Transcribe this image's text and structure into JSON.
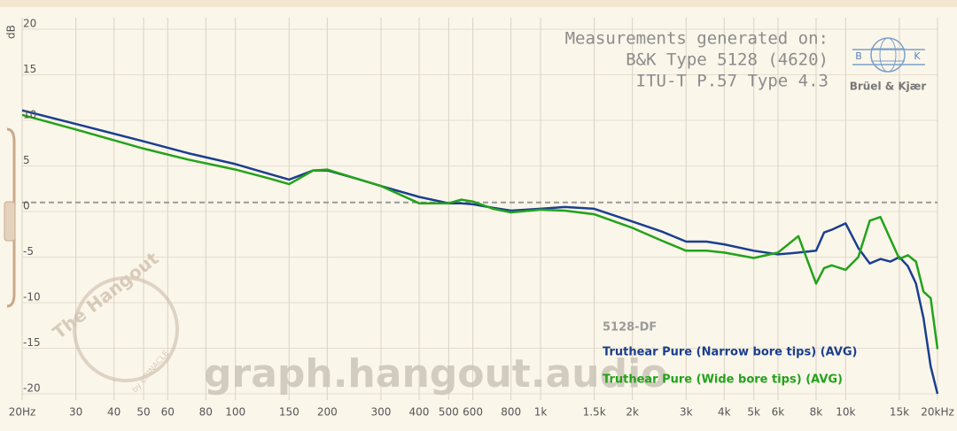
{
  "chart_data": {
    "type": "line",
    "xscale": "log",
    "ylabel": "dB",
    "annotations": [
      "Measurements generated on:",
      "B&K Type 5128 (4620)",
      "ITU-T P.57 Type 4.3"
    ],
    "logo": {
      "name": "Brüel & Kjær",
      "letters": [
        "B",
        "K"
      ]
    },
    "legend_title": "5128-DF",
    "watermark": "graph.hangout.audio",
    "badge": [
      "The Hangout",
      "by CRINACLE"
    ],
    "baseline": 1,
    "grid": true,
    "xlim": [
      20,
      20000
    ],
    "ylim": [
      -20,
      20
    ],
    "yticks": [
      20,
      15,
      10,
      5,
      0,
      -5,
      -10,
      -15,
      -20
    ],
    "xticks": [
      {
        "value": 20,
        "label": "20Hz"
      },
      30,
      40,
      50,
      60,
      80,
      100,
      150,
      200,
      300,
      400,
      500,
      600,
      800,
      {
        "value": 1000,
        "label": "1k"
      },
      {
        "value": 1500,
        "label": "1.5k"
      },
      {
        "value": 2000,
        "label": "2k"
      },
      {
        "value": 3000,
        "label": "3k"
      },
      {
        "value": 4000,
        "label": "4k"
      },
      {
        "value": 5000,
        "label": "5k"
      },
      {
        "value": 6000,
        "label": "6k"
      },
      {
        "value": 8000,
        "label": "8k"
      },
      {
        "value": 10000,
        "label": "10k"
      },
      {
        "value": 15000,
        "label": "15k"
      },
      {
        "value": 20000,
        "label": "20kHz"
      }
    ],
    "x": [
      20,
      30,
      50,
      70,
      100,
      130,
      150,
      180,
      200,
      250,
      300,
      400,
      500,
      550,
      600,
      700,
      800,
      1000,
      1200,
      1500,
      2000,
      2500,
      3000,
      3500,
      4000,
      5000,
      6000,
      7000,
      8000,
      8500,
      9000,
      10000,
      11000,
      12000,
      13000,
      14000,
      15000,
      16000,
      17000,
      18000,
      19000,
      20000
    ],
    "series": [
      {
        "name": "Truthear Pure (Narrow bore tips) (AVG)",
        "color": "#1a3f8f",
        "values": [
          11.1,
          9.6,
          7.7,
          6.4,
          5.2,
          4.1,
          3.5,
          4.5,
          4.5,
          3.6,
          2.8,
          1.6,
          0.9,
          0.9,
          0.8,
          0.4,
          0.1,
          0.3,
          0.5,
          0.3,
          -1.1,
          -2.2,
          -3.3,
          -3.3,
          -3.6,
          -4.3,
          -4.7,
          -4.5,
          -4.3,
          -2.3,
          -2.0,
          -1.3,
          -4.0,
          -5.7,
          -5.2,
          -5.5,
          -5.0,
          -6.0,
          -7.9,
          -11.7,
          -17.0,
          -20
        ]
      },
      {
        "name": "Truthear Pure (Wide bore tips) (AVG)",
        "color": "#22a31a",
        "values": [
          10.6,
          9.0,
          6.9,
          5.7,
          4.6,
          3.6,
          3.0,
          4.5,
          4.6,
          3.6,
          2.8,
          0.9,
          0.9,
          1.3,
          1.1,
          0.3,
          -0.1,
          0.2,
          0.1,
          -0.3,
          -1.8,
          -3.2,
          -4.3,
          -4.3,
          -4.5,
          -5.1,
          -4.5,
          -2.7,
          -7.9,
          -6.2,
          -5.9,
          -6.4,
          -5.0,
          -1.0,
          -0.6,
          -3.0,
          -5.2,
          -4.8,
          -5.5,
          -8.8,
          -9.5,
          -15.1
        ]
      }
    ]
  }
}
